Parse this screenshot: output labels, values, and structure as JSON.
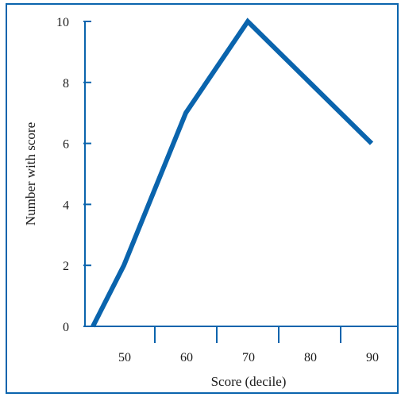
{
  "chart_data": {
    "type": "line",
    "title": "",
    "xlabel": "Score (decile)",
    "ylabel": "Number with score",
    "x": [
      45,
      50,
      60,
      70,
      80,
      90
    ],
    "series": [
      {
        "values": [
          0,
          2,
          7,
          10,
          8,
          6
        ]
      }
    ],
    "x_tick_labels": [
      "50",
      "60",
      "70",
      "80",
      "90"
    ],
    "y_tick_labels": [
      "0",
      "2",
      "4",
      "6",
      "8",
      "10"
    ],
    "xlim": [
      40,
      95
    ],
    "ylim": [
      0,
      10
    ],
    "grid": false,
    "legend": "none",
    "colors": {
      "line": "#0a64ad",
      "axis": "#0a64ad",
      "frame": "#0a64ad",
      "text": "#1a1a1a"
    }
  }
}
